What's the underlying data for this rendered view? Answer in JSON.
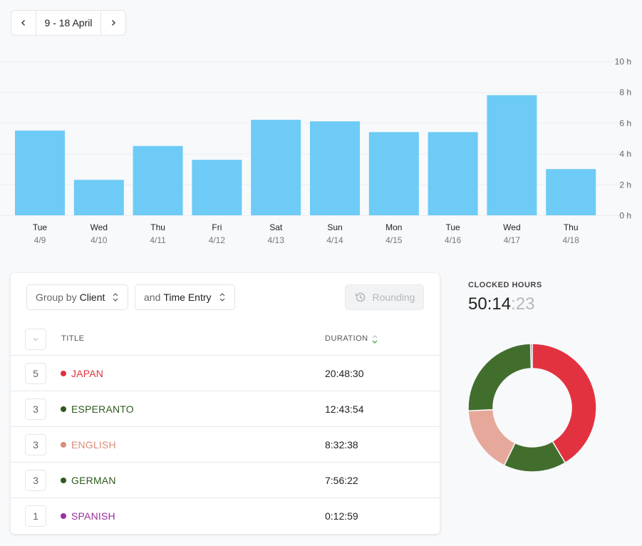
{
  "date_range": {
    "label": "9 - 18 April"
  },
  "chart_data": {
    "type": "bar",
    "categories": [
      "Tue 4/9",
      "Wed 4/10",
      "Thu 4/11",
      "Fri 4/12",
      "Sat 4/13",
      "Sun 4/14",
      "Mon 4/15",
      "Tue 4/16",
      "Wed 4/17",
      "Thu 4/18"
    ],
    "days": [
      "Tue",
      "Wed",
      "Thu",
      "Fri",
      "Sat",
      "Sun",
      "Mon",
      "Tue",
      "Wed",
      "Thu"
    ],
    "dates": [
      "4/9",
      "4/10",
      "4/11",
      "4/12",
      "4/13",
      "4/14",
      "4/15",
      "4/16",
      "4/17",
      "4/18"
    ],
    "values": [
      5.5,
      2.3,
      4.5,
      3.6,
      6.2,
      6.1,
      5.4,
      5.4,
      7.8,
      3.0
    ],
    "yticks": [
      "0 h",
      "2 h",
      "4 h",
      "6 h",
      "8 h",
      "10 h"
    ],
    "ylim": [
      0,
      10
    ],
    "grid": true,
    "color": "#6dcbf6"
  },
  "toolbar": {
    "group_prefix": "Group by",
    "group_value": "Client",
    "and_prefix": "and",
    "and_value": "Time Entry",
    "rounding_label": "Rounding"
  },
  "table": {
    "headers": {
      "title": "TITLE",
      "duration": "DURATION"
    },
    "rows": [
      {
        "count": "5",
        "title": "JAPAN",
        "duration": "20:48:30",
        "color": "#e0323f"
      },
      {
        "count": "3",
        "title": "ESPERANTO",
        "duration": "12:43:54",
        "color": "#2e5a1c"
      },
      {
        "count": "3",
        "title": "ENGLISH",
        "duration": "8:32:38",
        "color": "#d88c79"
      },
      {
        "count": "3",
        "title": "GERMAN",
        "duration": "7:56:22",
        "color": "#2e5a1c"
      },
      {
        "count": "1",
        "title": "SPANISH",
        "duration": "0:12:59",
        "color": "#9b2fa0"
      }
    ]
  },
  "summary": {
    "label": "CLOCKED HOURS",
    "hours_minutes": "50:14",
    "separator": ":",
    "seconds": "23"
  },
  "donut": {
    "segments": [
      {
        "name": "JAPAN",
        "value": 74910,
        "color": "#e3323f"
      },
      {
        "name": "GERMAN",
        "value": 28582,
        "color": "#426e2d"
      },
      {
        "name": "ENGLISH",
        "value": 30758,
        "color": "#e6a89a"
      },
      {
        "name": "ESPERANTO",
        "value": 45834,
        "color": "#426e2d"
      },
      {
        "name": "SPANISH",
        "value": 779,
        "color": "#9b3fb0"
      }
    ]
  }
}
